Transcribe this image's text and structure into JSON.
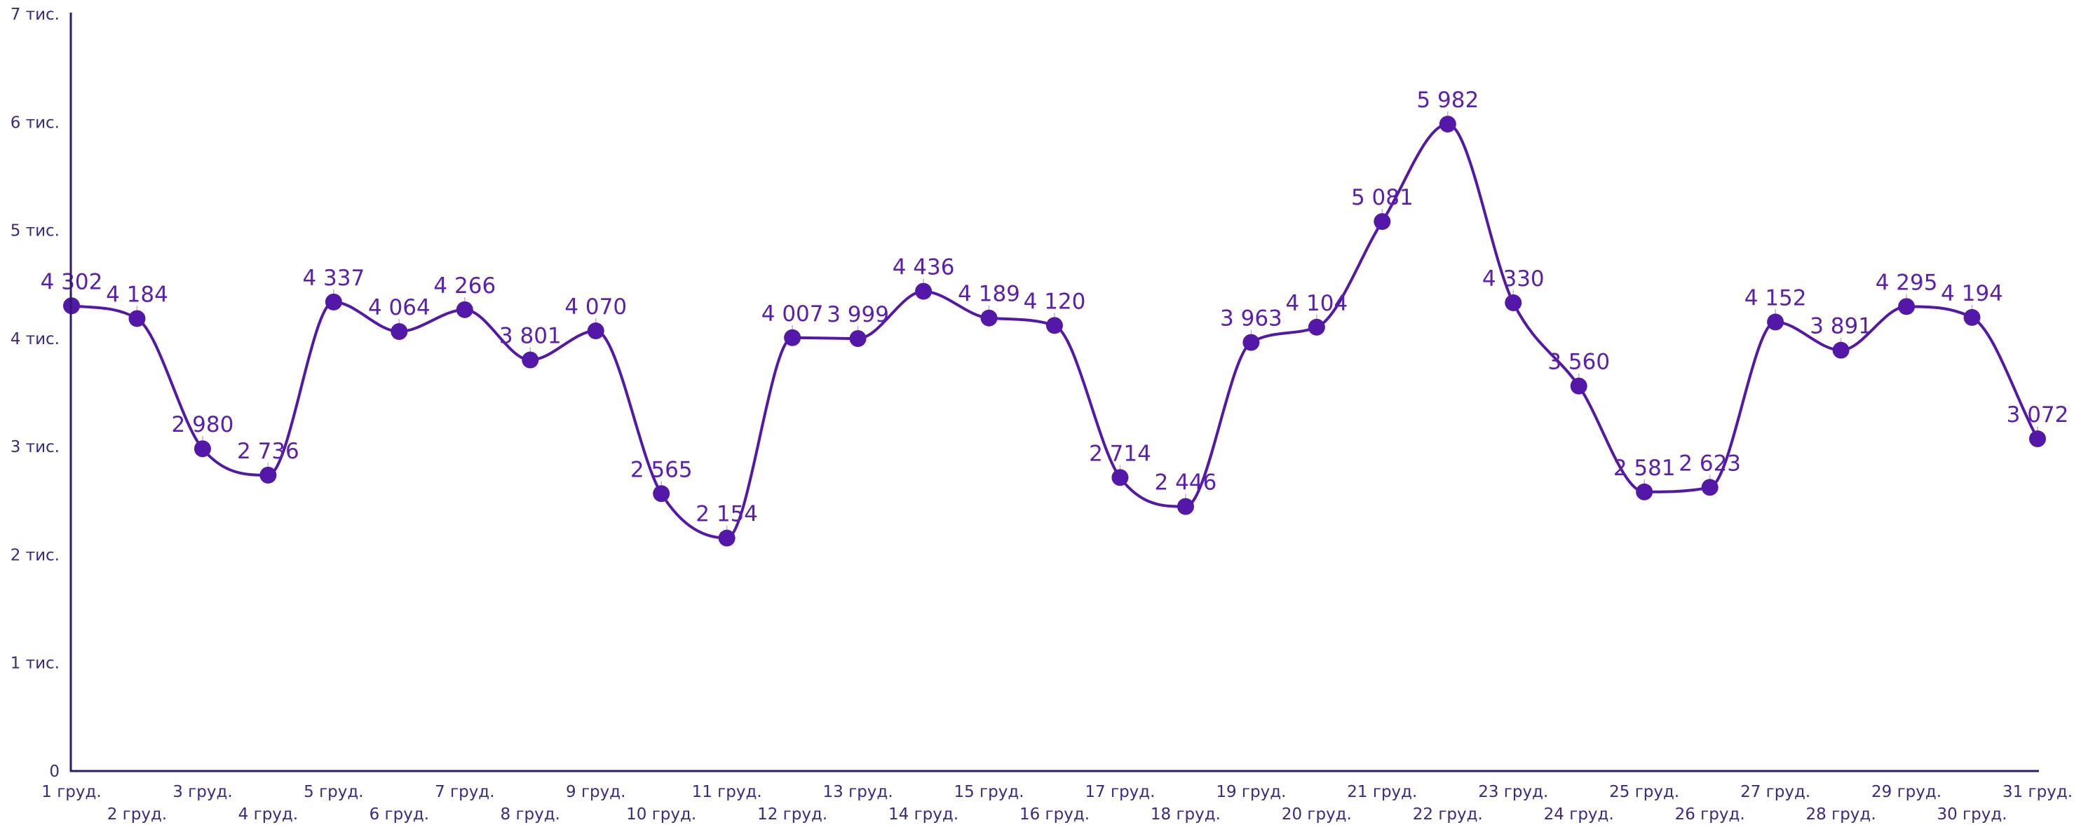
{
  "chart_data": {
    "type": "line",
    "smooth": true,
    "color": "#5418a8",
    "ylim": [
      0,
      7000
    ],
    "y_ticks": [
      {
        "value": 0,
        "label": "0"
      },
      {
        "value": 1000,
        "label": "1 тис."
      },
      {
        "value": 2000,
        "label": "2 тис."
      },
      {
        "value": 3000,
        "label": "3 тис."
      },
      {
        "value": 4000,
        "label": "4 тис."
      },
      {
        "value": 5000,
        "label": "5 тис."
      },
      {
        "value": 6000,
        "label": "6 тис."
      },
      {
        "value": 7000,
        "label": "7 тис."
      }
    ],
    "categories": [
      "1 груд.",
      "2 груд.",
      "3 груд.",
      "4 груд.",
      "5 груд.",
      "6 груд.",
      "7 груд.",
      "8 груд.",
      "9 груд.",
      "10 груд.",
      "11 груд.",
      "12 груд.",
      "13 груд.",
      "14 груд.",
      "15 груд.",
      "16 груд.",
      "17 груд.",
      "18 груд.",
      "19 груд.",
      "20 груд.",
      "21 груд.",
      "22 груд.",
      "23 груд.",
      "24 груд.",
      "25 груд.",
      "26 груд.",
      "27 груд.",
      "28 груд.",
      "29 груд.",
      "30 груд.",
      "31 груд."
    ],
    "values": [
      4302,
      4184,
      2980,
      2736,
      4337,
      4064,
      4266,
      3801,
      4070,
      2565,
      2154,
      4007,
      3999,
      4436,
      4189,
      4120,
      2714,
      2446,
      3963,
      4104,
      5081,
      5982,
      4330,
      3560,
      2581,
      2623,
      4152,
      3891,
      4295,
      4194,
      3072
    ],
    "value_labels": [
      "4 302",
      "4 184",
      "2 980",
      "2 736",
      "4 337",
      "4 064",
      "4 266",
      "3 801",
      "4 070",
      "2 565",
      "2 154",
      "4 007",
      "3 999",
      "4 436",
      "4 189",
      "4 120",
      "2 714",
      "2 446",
      "3 963",
      "4 104",
      "5 081",
      "5 982",
      "4 330",
      "3 560",
      "2 581",
      "2 623",
      "4 152",
      "3 891",
      "4 295",
      "4 194",
      "3 072"
    ],
    "grid": false,
    "legend": "none"
  }
}
